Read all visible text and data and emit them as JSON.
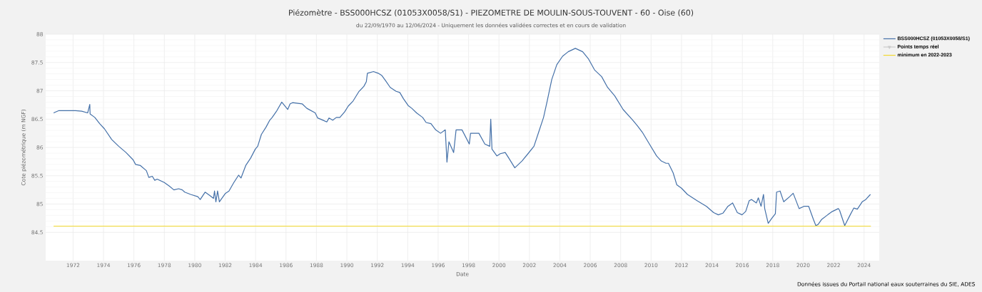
{
  "chart_data": {
    "type": "line",
    "title": "Piézomètre - BSS000HCSZ (01053X0058/S1) - PIEZOMETRE DE MOULIN-SOUS-TOUVENT - 60 - Oise (60)",
    "subtitle": "du 22/09/1970 au 12/06/2024 - Uniquement les données validées correctes et en cours de validation",
    "xlabel": "Date",
    "ylabel": "Cote piézométrique (m NGF)",
    "annotations": [
      "Données issues du Portail national eaux souterraines du SIE, ADES"
    ],
    "xlim": [
      1970.2,
      2025
    ],
    "ylim": [
      84,
      88
    ],
    "xticks": [
      1972,
      1974,
      1976,
      1978,
      1980,
      1982,
      1984,
      1986,
      1988,
      1990,
      1992,
      1994,
      1996,
      1998,
      2000,
      2002,
      2004,
      2006,
      2008,
      2010,
      2012,
      2014,
      2016,
      2018,
      2020,
      2022,
      2024
    ],
    "yticks": [
      84.5,
      85,
      85.5,
      86,
      86.5,
      87,
      87.5,
      88
    ],
    "grid": true,
    "legend": "right",
    "series": [
      {
        "name": "BSS000HCSZ (01053X0058/S1)",
        "color": "#4470a8",
        "x": [
          1970.72,
          1971.07,
          1971.54,
          1972.17,
          1972.57,
          1972.96,
          1973.1,
          1973.12,
          1973.43,
          1973.75,
          1974.06,
          1974.54,
          1975.0,
          1975.48,
          1975.95,
          1976.11,
          1976.43,
          1976.82,
          1976.98,
          1977.21,
          1977.37,
          1977.53,
          1978.0,
          1978.16,
          1978.31,
          1978.63,
          1978.94,
          1979.18,
          1979.34,
          1979.73,
          1980.2,
          1980.36,
          1980.68,
          1980.99,
          1981.23,
          1981.3,
          1981.39,
          1981.5,
          1981.62,
          1981.86,
          1982.02,
          1982.25,
          1982.57,
          1982.88,
          1983.04,
          1983.35,
          1983.67,
          1983.98,
          1984.14,
          1984.38,
          1984.69,
          1984.93,
          1985.09,
          1985.4,
          1985.72,
          1986.11,
          1986.27,
          1986.43,
          1987.06,
          1987.37,
          1987.92,
          1988.08,
          1988.44,
          1988.68,
          1988.83,
          1989.07,
          1989.31,
          1989.54,
          1989.86,
          1990.09,
          1990.41,
          1990.8,
          1991.12,
          1991.28,
          1991.35,
          1991.75,
          1992.06,
          1992.3,
          1992.54,
          1992.85,
          1993.24,
          1993.48,
          1993.72,
          1994.03,
          1994.27,
          1994.58,
          1994.98,
          1995.21,
          1995.53,
          1995.84,
          1996.16,
          1996.47,
          1996.58,
          1996.71,
          1997.02,
          1997.18,
          1997.57,
          1998.05,
          1998.13,
          1998.68,
          1999.07,
          1999.39,
          1999.46,
          1999.54,
          1999.86,
          2000.09,
          2000.41,
          2000.65,
          2001.04,
          2001.51,
          2001.91,
          2002.3,
          2002.61,
          2002.93,
          2003.17,
          2003.47,
          2003.8,
          2004.18,
          2004.55,
          2005.02,
          2005.5,
          2005.89,
          2006.28,
          2006.75,
          2007.14,
          2007.61,
          2008.16,
          2008.8,
          2009.11,
          2009.42,
          2009.89,
          2010.36,
          2010.67,
          2010.98,
          2011.14,
          2011.45,
          2011.69,
          2012.0,
          2012.39,
          2013.02,
          2013.64,
          2014.11,
          2014.42,
          2014.73,
          2015.05,
          2015.36,
          2015.67,
          2015.98,
          2016.22,
          2016.45,
          2016.61,
          2016.92,
          2017.05,
          2017.23,
          2017.39,
          2017.47,
          2017.7,
          2017.94,
          2018.17,
          2018.25,
          2018.48,
          2018.72,
          2019.11,
          2019.34,
          2019.5,
          2019.73,
          2020.05,
          2020.36,
          2020.67,
          2020.83,
          2020.98,
          2021.22,
          2021.61,
          2021.92,
          2022.31,
          2022.39,
          2022.73,
          2023.09,
          2023.33,
          2023.56,
          2023.88,
          2024.11,
          2024.42
        ],
        "values": [
          86.61,
          86.65,
          86.65,
          86.65,
          86.64,
          86.61,
          86.76,
          86.59,
          86.53,
          86.42,
          86.33,
          86.14,
          86.02,
          85.91,
          85.78,
          85.7,
          85.68,
          85.59,
          85.47,
          85.49,
          85.42,
          85.44,
          85.38,
          85.35,
          85.32,
          85.25,
          85.27,
          85.25,
          85.21,
          85.17,
          85.13,
          85.08,
          85.21,
          85.15,
          85.1,
          85.23,
          85.04,
          85.23,
          85.04,
          85.13,
          85.19,
          85.23,
          85.38,
          85.51,
          85.46,
          85.68,
          85.81,
          85.97,
          86.02,
          86.23,
          86.36,
          86.48,
          86.53,
          86.65,
          86.8,
          86.67,
          86.77,
          86.79,
          86.77,
          86.69,
          86.61,
          86.52,
          86.48,
          86.45,
          86.52,
          86.48,
          86.53,
          86.53,
          86.63,
          86.73,
          86.82,
          86.99,
          87.08,
          87.16,
          87.31,
          87.34,
          87.31,
          87.27,
          87.18,
          87.06,
          86.99,
          86.97,
          86.86,
          86.74,
          86.69,
          86.61,
          86.53,
          86.44,
          86.42,
          86.31,
          86.25,
          86.31,
          85.74,
          86.1,
          85.91,
          86.31,
          86.31,
          86.06,
          86.25,
          86.25,
          86.06,
          86.02,
          86.5,
          85.97,
          85.85,
          85.89,
          85.91,
          85.81,
          85.64,
          85.76,
          85.89,
          86.02,
          86.27,
          86.53,
          86.82,
          87.2,
          87.46,
          87.61,
          87.69,
          87.75,
          87.69,
          87.56,
          87.37,
          87.25,
          87.06,
          86.91,
          86.67,
          86.48,
          86.38,
          86.27,
          86.06,
          85.85,
          85.76,
          85.72,
          85.72,
          85.55,
          85.34,
          85.28,
          85.17,
          85.06,
          84.96,
          84.85,
          84.81,
          84.84,
          84.96,
          85.02,
          84.85,
          84.81,
          84.87,
          85.06,
          85.08,
          85.02,
          85.11,
          84.96,
          85.17,
          84.92,
          84.66,
          84.75,
          84.83,
          85.21,
          85.23,
          85.04,
          85.13,
          85.19,
          85.08,
          84.92,
          84.96,
          84.96,
          84.73,
          84.62,
          84.64,
          84.73,
          84.81,
          84.87,
          84.92,
          84.89,
          84.62,
          84.81,
          84.93,
          84.91,
          85.04,
          85.08,
          85.17
        ]
      },
      {
        "name": "Points temps réel",
        "color": "#cccccc",
        "marker": "triangle"
      },
      {
        "name": "minimum en 2022-2023",
        "color": "#f2d92e",
        "x": [
          1970.72,
          2024.45
        ],
        "values": [
          84.61,
          84.61
        ]
      }
    ]
  }
}
